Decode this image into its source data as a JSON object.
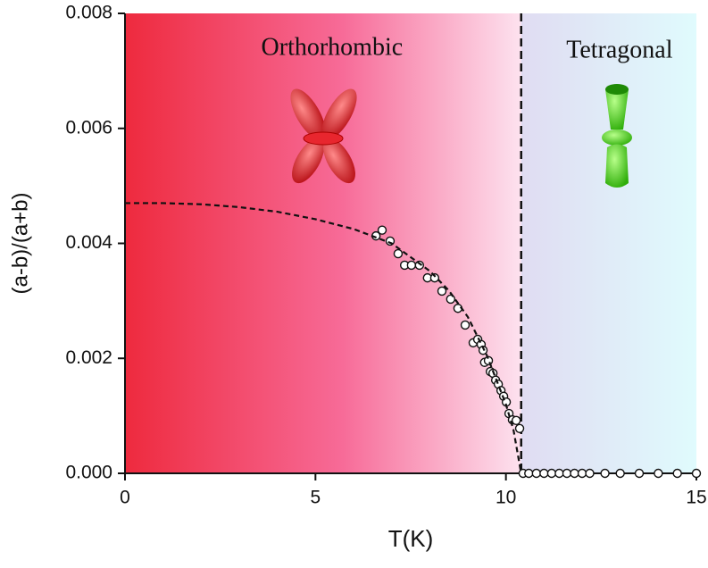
{
  "chart_data": {
    "type": "scatter",
    "x_label": "T(K)",
    "y_label": "(a-b)/(a+b)",
    "annotations": [
      "Orthorhombic",
      "Tetragonal"
    ],
    "phase_boundary": 10.4,
    "xlim": [
      0,
      15
    ],
    "ylim": [
      0,
      0.008
    ],
    "xticks": [
      0,
      5,
      10,
      15
    ],
    "yticks": [
      {
        "value": 0,
        "label": "0.000"
      },
      {
        "value": 0.002,
        "label": "0.002"
      },
      {
        "value": 0.004,
        "label": "0.004"
      },
      {
        "value": 0.006,
        "label": "0.006"
      },
      {
        "value": 0.008,
        "label": "0.008"
      }
    ],
    "series": [
      {
        "color": "#ffffff",
        "x": [
          6.59,
          6.75,
          6.96,
          7.17,
          7.34,
          7.52,
          7.73,
          7.94,
          8.13,
          8.32,
          8.55,
          8.74,
          8.93,
          9.14,
          9.26,
          9.35,
          9.4,
          9.44,
          9.54,
          9.59,
          9.66,
          9.73,
          9.8,
          9.87,
          9.94,
          10.01,
          10.08,
          10.17,
          10.27,
          10.36,
          10.45,
          10.6,
          10.8,
          11.0,
          11.2,
          11.4,
          11.6,
          11.8,
          12.0,
          12.2,
          12.6,
          13.0,
          13.5,
          14.0,
          14.5,
          15.0
        ],
        "values": [
          0.00413,
          0.00423,
          0.00404,
          0.00382,
          0.00362,
          0.00362,
          0.00362,
          0.0034,
          0.0034,
          0.00317,
          0.00303,
          0.00287,
          0.00258,
          0.00227,
          0.00233,
          0.00224,
          0.00214,
          0.00193,
          0.00196,
          0.00177,
          0.00174,
          0.00162,
          0.00155,
          0.00144,
          0.00134,
          0.00124,
          0.00104,
          0.00093,
          0.00092,
          0.00078,
          0,
          0,
          0,
          0,
          0,
          0,
          0,
          0,
          0,
          0,
          0,
          0,
          0,
          0,
          0,
          0
        ]
      },
      {
        "color": "#111111",
        "line": "dashed",
        "x": [
          0,
          1,
          2,
          3,
          4,
          5,
          6,
          7,
          8,
          8.5,
          9,
          9.5,
          10,
          10.2,
          10.4
        ],
        "values": [
          0.0047,
          0.0047,
          0.00468,
          0.00463,
          0.00455,
          0.00442,
          0.00425,
          0.004,
          0.00352,
          0.00318,
          0.00272,
          0.00205,
          0.0012,
          0.00075,
          0
        ]
      }
    ]
  }
}
